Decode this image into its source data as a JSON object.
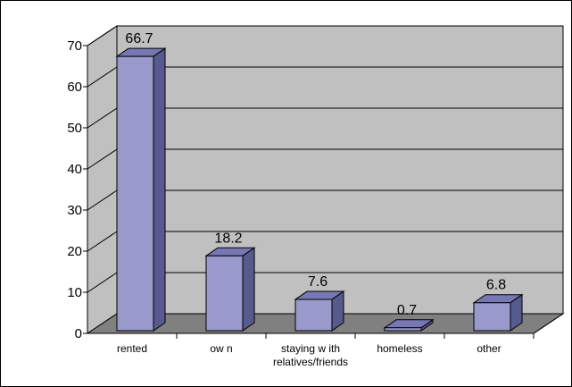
{
  "chart_data": {
    "type": "bar",
    "categories": [
      [
        "rented"
      ],
      [
        "ow n"
      ],
      [
        "staying w ith",
        "relatives/friends"
      ],
      [
        "homeless"
      ],
      [
        "other"
      ]
    ],
    "values": [
      66.7,
      18.2,
      7.6,
      0.7,
      6.8
    ],
    "value_labels": [
      "66.7",
      "18.2",
      "7.6",
      "0.7",
      "6.8"
    ],
    "yticks": [
      "0",
      "10",
      "20",
      "30",
      "40",
      "50",
      "60",
      "70"
    ],
    "ylim": [
      0,
      70
    ],
    "grid": true,
    "three_d": true,
    "title": "",
    "xlabel": "",
    "ylabel": "",
    "colors": {
      "bar_front": "#9999cc",
      "bar_side": "#565a8c",
      "bar_top": "#7778b3",
      "wall": "#c0c0c0",
      "floor": "#808080",
      "outline": "#000000"
    }
  }
}
